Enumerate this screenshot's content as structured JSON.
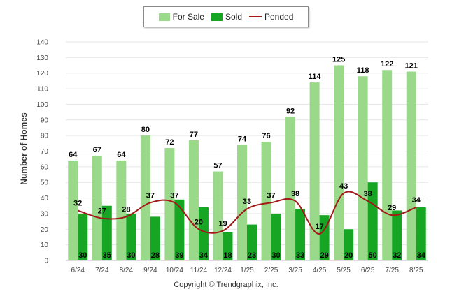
{
  "legend": {
    "for_sale": "For Sale",
    "sold": "Sold",
    "pended": "Pended"
  },
  "copyright": "Copyright © Trendgraphix, Inc.",
  "colors": {
    "for_sale": "#9ad98a",
    "sold": "#16a624",
    "pended": "#a31818",
    "grid": "#e6e6e6",
    "axis_text": "#444444"
  },
  "chart_data": {
    "type": "bar",
    "title": "",
    "xlabel": "",
    "ylabel": "Number of Homes",
    "ylim": [
      0,
      140
    ],
    "yticks": [
      0,
      10,
      20,
      30,
      40,
      50,
      60,
      70,
      80,
      90,
      100,
      110,
      120,
      130,
      140
    ],
    "grid": true,
    "legend_position": "top-center",
    "categories": [
      "6/24",
      "7/24",
      "8/24",
      "9/24",
      "10/24",
      "11/24",
      "12/24",
      "1/25",
      "2/25",
      "3/25",
      "4/25",
      "5/25",
      "6/25",
      "7/25",
      "8/25"
    ],
    "series": [
      {
        "name": "For Sale",
        "kind": "bar",
        "values": [
          64,
          67,
          64,
          80,
          72,
          77,
          57,
          74,
          76,
          92,
          114,
          125,
          118,
          122,
          121
        ]
      },
      {
        "name": "Sold",
        "kind": "bar",
        "values": [
          30,
          35,
          30,
          28,
          39,
          34,
          18,
          23,
          30,
          33,
          29,
          20,
          50,
          32,
          34
        ]
      },
      {
        "name": "Pended",
        "kind": "line",
        "values": [
          32,
          27,
          28,
          37,
          37,
          20,
          19,
          33,
          37,
          38,
          17,
          43,
          38,
          29,
          34
        ]
      }
    ]
  }
}
